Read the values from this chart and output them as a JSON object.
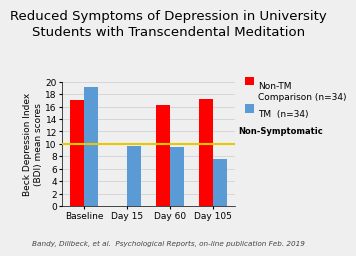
{
  "title": "Reduced Symptoms of Depression in University\nStudents with Transcendental Meditation",
  "categories": [
    "Baseline",
    "Day 15",
    "Day 60",
    "Day 105"
  ],
  "non_tm_values": [
    17.0,
    null,
    16.2,
    17.2
  ],
  "tm_values": [
    19.2,
    9.6,
    9.5,
    7.5
  ],
  "non_tm_color": "#FF0000",
  "tm_color": "#5B9BD5",
  "ylabel": "Beck Depression Index\n(BDI) mean scores",
  "ylim": [
    0,
    20
  ],
  "yticks": [
    0,
    2,
    4,
    6,
    8,
    10,
    12,
    14,
    16,
    18,
    20
  ],
  "hline_y": 10,
  "hline_color": "#E8C800",
  "hline_label": "Non-Symptomatic",
  "legend_non_tm": "Non-TM\nComparison (n=34)",
  "legend_tm": "TM  (n=34)",
  "citation": "Bandy, Dillbeck, et al.  Psychological Reports, on-line publication Feb. 2019",
  "background_color": "#EFEFEF",
  "title_fontsize": 9.5,
  "axis_fontsize": 6.5,
  "tick_fontsize": 6.5,
  "legend_fontsize": 6.5,
  "citation_fontsize": 5.2,
  "bar_width": 0.32
}
